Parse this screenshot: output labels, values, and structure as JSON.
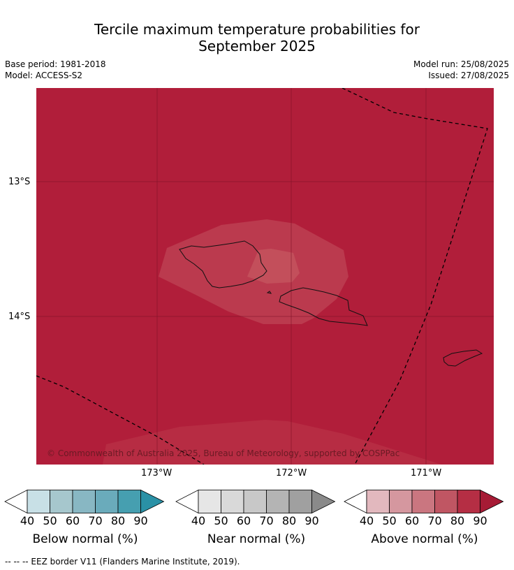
{
  "title_line1": "Tercile maximum temperature probabilities for",
  "title_line2": "September 2025",
  "base_period": "Base period: 1981-2018",
  "model": "Model: ACCESS-S2",
  "model_run": "Model run: 25/08/2025",
  "issued": "Issued: 27/08/2025",
  "lat_labels": [
    "13°S",
    "14°S"
  ],
  "lon_labels": [
    "173°W",
    "172°W",
    "171°W"
  ],
  "copyright": "© Commonwealth of Australia 2025, Bureau of Meteorology, supported by COSPPac",
  "colorbars": [
    {
      "caption": "Below normal (%)",
      "ticks": [
        "40",
        "50",
        "60",
        "70",
        "80",
        "90"
      ],
      "colors": [
        "#ffffff",
        "#c8e0e6",
        "#a6c7cd",
        "#88b7c3",
        "#6aabbb",
        "#469fb0",
        "#2a91a6"
      ]
    },
    {
      "caption": "Near normal (%)",
      "ticks": [
        "40",
        "50",
        "60",
        "70",
        "80",
        "90"
      ],
      "colors": [
        "#ffffff",
        "#e6e6e6",
        "#d9d9d9",
        "#c8c8c8",
        "#b4b4b4",
        "#a0a0a0",
        "#8a8a8a"
      ]
    },
    {
      "caption": "Above normal (%)",
      "ticks": [
        "40",
        "50",
        "60",
        "70",
        "80",
        "90"
      ],
      "colors": [
        "#ffffff",
        "#e2b8be",
        "#d5979f",
        "#ca7680",
        "#c05663",
        "#b52e44",
        "#a61b35"
      ]
    }
  ],
  "footer": "--  --  -- EEZ border V11 (Flanders Marine Institute, 2019).",
  "map_colors": {
    "base": "#b11e3a",
    "mid": "#bb3a4e",
    "inner": "#c34f5b"
  }
}
